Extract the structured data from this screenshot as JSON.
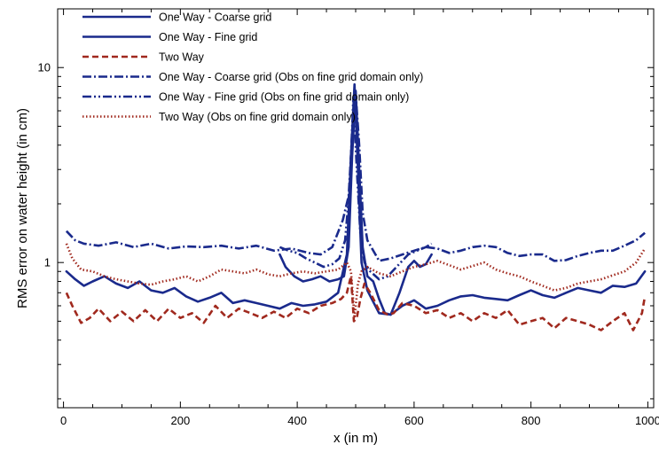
{
  "chart_data": {
    "type": "line",
    "title": "",
    "xlabel": "x (in m)",
    "ylabel": "RMS error on water height (in cm)",
    "xlim": [
      -10,
      1010
    ],
    "ylim": [
      0.18,
      20
    ],
    "yscale": "log",
    "xticks": [
      0,
      200,
      400,
      600,
      800,
      1000
    ],
    "xtick_labels": [
      "0",
      "200",
      "400",
      "600",
      "800",
      "1000"
    ],
    "yticks": [
      1,
      10
    ],
    "ytick_labels": [
      "1",
      "10"
    ],
    "grid": false,
    "legend_position": "top-left",
    "colors": {
      "blue": "#1a2a8c",
      "red": "#a0291e"
    },
    "series": [
      {
        "name": "One Way - Coarse grid",
        "color": "#1a2a8c",
        "dash": "solid",
        "x": [
          5,
          20,
          35,
          50,
          70,
          90,
          110,
          130,
          150,
          170,
          190,
          210,
          230,
          250,
          270,
          290,
          310,
          330,
          350,
          370,
          390,
          410,
          430,
          450,
          470,
          485,
          492,
          498,
          504,
          510,
          520,
          540,
          560,
          580,
          600,
          620,
          640,
          660,
          680,
          700,
          720,
          740,
          760,
          780,
          800,
          820,
          840,
          860,
          880,
          900,
          920,
          940,
          960,
          980,
          995
        ],
        "y": [
          0.9,
          0.82,
          0.76,
          0.8,
          0.85,
          0.78,
          0.74,
          0.8,
          0.72,
          0.7,
          0.74,
          0.67,
          0.63,
          0.66,
          0.7,
          0.62,
          0.64,
          0.62,
          0.6,
          0.58,
          0.62,
          0.6,
          0.61,
          0.63,
          0.7,
          1.1,
          3.5,
          8.2,
          3.0,
          1.0,
          0.72,
          0.55,
          0.54,
          0.6,
          0.64,
          0.58,
          0.6,
          0.64,
          0.67,
          0.68,
          0.66,
          0.65,
          0.64,
          0.68,
          0.72,
          0.68,
          0.66,
          0.7,
          0.74,
          0.72,
          0.7,
          0.76,
          0.75,
          0.78,
          0.9
        ]
      },
      {
        "name": "One Way - Fine grid",
        "color": "#1a2a8c",
        "dash": "solid",
        "x": [
          370,
          380,
          395,
          410,
          425,
          440,
          455,
          470,
          480,
          488,
          494,
          500,
          506,
          512,
          520,
          530,
          540,
          550,
          560,
          575,
          590,
          600,
          610,
          620,
          630
        ],
        "y": [
          1.1,
          0.95,
          0.85,
          0.8,
          0.82,
          0.85,
          0.8,
          0.82,
          0.85,
          1.2,
          3.5,
          7.6,
          3.0,
          1.2,
          0.85,
          0.8,
          0.65,
          0.55,
          0.54,
          0.7,
          0.95,
          1.02,
          0.95,
          0.98,
          1.1
        ]
      },
      {
        "name": "Two Way",
        "color": "#a0291e",
        "dash": "dashed",
        "x": [
          5,
          15,
          30,
          45,
          60,
          80,
          100,
          120,
          140,
          160,
          180,
          200,
          220,
          240,
          260,
          280,
          300,
          320,
          340,
          360,
          380,
          400,
          420,
          440,
          460,
          475,
          485,
          492,
          497,
          502,
          508,
          515,
          525,
          540,
          555,
          565,
          580,
          600,
          620,
          640,
          660,
          680,
          700,
          720,
          740,
          760,
          780,
          800,
          820,
          840,
          860,
          880,
          900,
          920,
          940,
          960,
          975,
          990,
          995
        ],
        "y": [
          0.7,
          0.6,
          0.49,
          0.52,
          0.58,
          0.5,
          0.56,
          0.5,
          0.57,
          0.5,
          0.58,
          0.52,
          0.55,
          0.49,
          0.6,
          0.52,
          0.58,
          0.55,
          0.52,
          0.56,
          0.52,
          0.58,
          0.55,
          0.6,
          0.62,
          0.65,
          0.7,
          0.85,
          0.5,
          0.52,
          0.65,
          0.78,
          0.7,
          0.57,
          0.54,
          0.55,
          0.62,
          0.6,
          0.55,
          0.57,
          0.52,
          0.55,
          0.5,
          0.55,
          0.52,
          0.57,
          0.48,
          0.5,
          0.52,
          0.46,
          0.52,
          0.5,
          0.48,
          0.45,
          0.5,
          0.55,
          0.45,
          0.55,
          0.67
        ]
      },
      {
        "name": "One Way - Coarse grid (Obs on fine grid domain only)",
        "color": "#1a2a8c",
        "dash": "dashdot",
        "x": [
          5,
          20,
          35,
          60,
          90,
          120,
          150,
          180,
          210,
          240,
          270,
          300,
          330,
          360,
          390,
          420,
          440,
          460,
          478,
          488,
          494,
          500,
          506,
          512,
          520,
          540,
          560,
          580,
          600,
          620,
          640,
          660,
          680,
          700,
          720,
          740,
          760,
          780,
          800,
          820,
          840,
          860,
          880,
          900,
          920,
          940,
          960,
          980,
          995
        ],
        "y": [
          1.45,
          1.3,
          1.25,
          1.22,
          1.27,
          1.2,
          1.25,
          1.18,
          1.21,
          1.2,
          1.22,
          1.18,
          1.22,
          1.15,
          1.18,
          1.12,
          1.1,
          1.2,
          1.65,
          2.2,
          4.5,
          7.4,
          4.0,
          1.8,
          1.3,
          1.02,
          1.05,
          1.1,
          1.15,
          1.2,
          1.18,
          1.12,
          1.15,
          1.2,
          1.22,
          1.2,
          1.12,
          1.08,
          1.1,
          1.1,
          1.02,
          1.03,
          1.08,
          1.12,
          1.15,
          1.15,
          1.22,
          1.3,
          1.42
        ]
      },
      {
        "name": "One Way - Fine grid (Obs on fine grid domain only)",
        "color": "#1a2a8c",
        "dash": "dashdotdot",
        "x": [
          370,
          385,
          400,
          415,
          430,
          445,
          460,
          472,
          482,
          490,
          496,
          502,
          508,
          515,
          525,
          540,
          555,
          570,
          590,
          605,
          620,
          630
        ],
        "y": [
          1.2,
          1.15,
          1.12,
          1.05,
          1.0,
          0.95,
          0.98,
          1.05,
          1.3,
          2.5,
          7.0,
          3.0,
          1.4,
          1.0,
          0.9,
          0.82,
          0.85,
          0.95,
          1.1,
          1.15,
          1.2,
          1.25
        ]
      },
      {
        "name": "Two Way (Obs on fine grid domain only)",
        "color": "#a0291e",
        "dash": "dotted",
        "x": [
          5,
          15,
          30,
          50,
          70,
          90,
          110,
          130,
          150,
          170,
          190,
          210,
          230,
          250,
          270,
          290,
          310,
          330,
          350,
          370,
          390,
          410,
          430,
          450,
          470,
          485,
          492,
          498,
          504,
          510,
          520,
          540,
          560,
          580,
          600,
          620,
          640,
          660,
          680,
          700,
          720,
          740,
          760,
          780,
          800,
          820,
          840,
          860,
          880,
          900,
          920,
          940,
          960,
          980,
          995
        ],
        "y": [
          1.25,
          1.05,
          0.92,
          0.9,
          0.85,
          0.82,
          0.8,
          0.78,
          0.77,
          0.8,
          0.82,
          0.85,
          0.8,
          0.85,
          0.92,
          0.9,
          0.88,
          0.92,
          0.87,
          0.85,
          0.88,
          0.9,
          0.88,
          0.9,
          0.92,
          1.0,
          0.9,
          0.52,
          0.78,
          0.9,
          0.95,
          0.88,
          0.85,
          0.9,
          0.95,
          0.98,
          1.02,
          0.97,
          0.92,
          0.96,
          1.0,
          0.92,
          0.88,
          0.85,
          0.8,
          0.76,
          0.72,
          0.74,
          0.78,
          0.8,
          0.82,
          0.86,
          0.9,
          1.0,
          1.18
        ]
      }
    ]
  }
}
